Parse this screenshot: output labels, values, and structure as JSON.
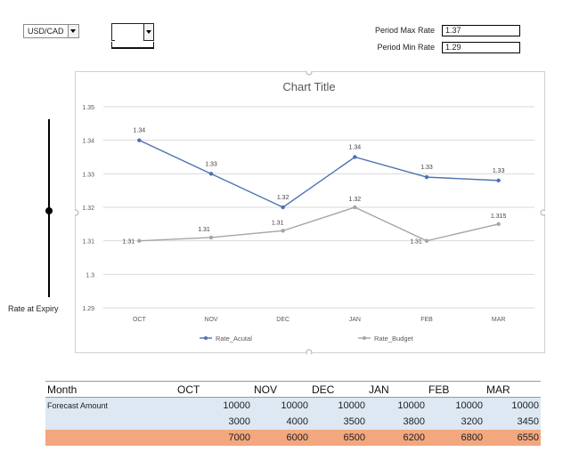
{
  "controls": {
    "currency_select": {
      "value": "USD/CAD"
    },
    "secondary_select": {
      "value": ""
    }
  },
  "period": {
    "max_label": "Period Max Rate",
    "max_value": "1.37",
    "min_label": "Period Min Rate",
    "min_value": "1.29"
  },
  "slider": {
    "label": "Rate at Expiry"
  },
  "chart_data": {
    "type": "line",
    "title": "Chart Title",
    "categories": [
      "OCT",
      "NOV",
      "DEC",
      "JAN",
      "FEB",
      "MAR"
    ],
    "y_ticks": [
      "1.35",
      "1.34",
      "1.33",
      "1.32",
      "1.31",
      "1.3",
      "1.29"
    ],
    "ylim": [
      1.29,
      1.35
    ],
    "grid": true,
    "legend_position": "bottom",
    "series": [
      {
        "name": "Rate_Acutal",
        "color": "#4a72b0",
        "values": [
          1.34,
          1.33,
          1.32,
          1.335,
          1.329,
          1.328
        ],
        "labels": [
          "1.34",
          "1.33",
          "1.32",
          "1.34",
          "1.33",
          "1.33"
        ]
      },
      {
        "name": "Rate_Budget",
        "color": "#a5a5a5",
        "values": [
          1.31,
          1.311,
          1.313,
          1.32,
          1.31,
          1.315
        ],
        "labels": [
          "1.31",
          "1.31",
          "1.31",
          "1.32",
          "1.31",
          "1.315"
        ]
      }
    ]
  },
  "table": {
    "headers": [
      "Month",
      "OCT",
      "NOV",
      "DEC",
      "JAN",
      "FEB",
      "MAR"
    ],
    "rows": [
      {
        "label": "Forecast Amount",
        "values": [
          "10000",
          "10000",
          "10000",
          "10000",
          "10000",
          "10000"
        ]
      },
      {
        "label": "",
        "values": [
          "3000",
          "4000",
          "3500",
          "3800",
          "3200",
          "3450"
        ]
      },
      {
        "label": "",
        "values": [
          "7000",
          "6000",
          "6500",
          "6200",
          "6800",
          "6550"
        ]
      }
    ]
  }
}
